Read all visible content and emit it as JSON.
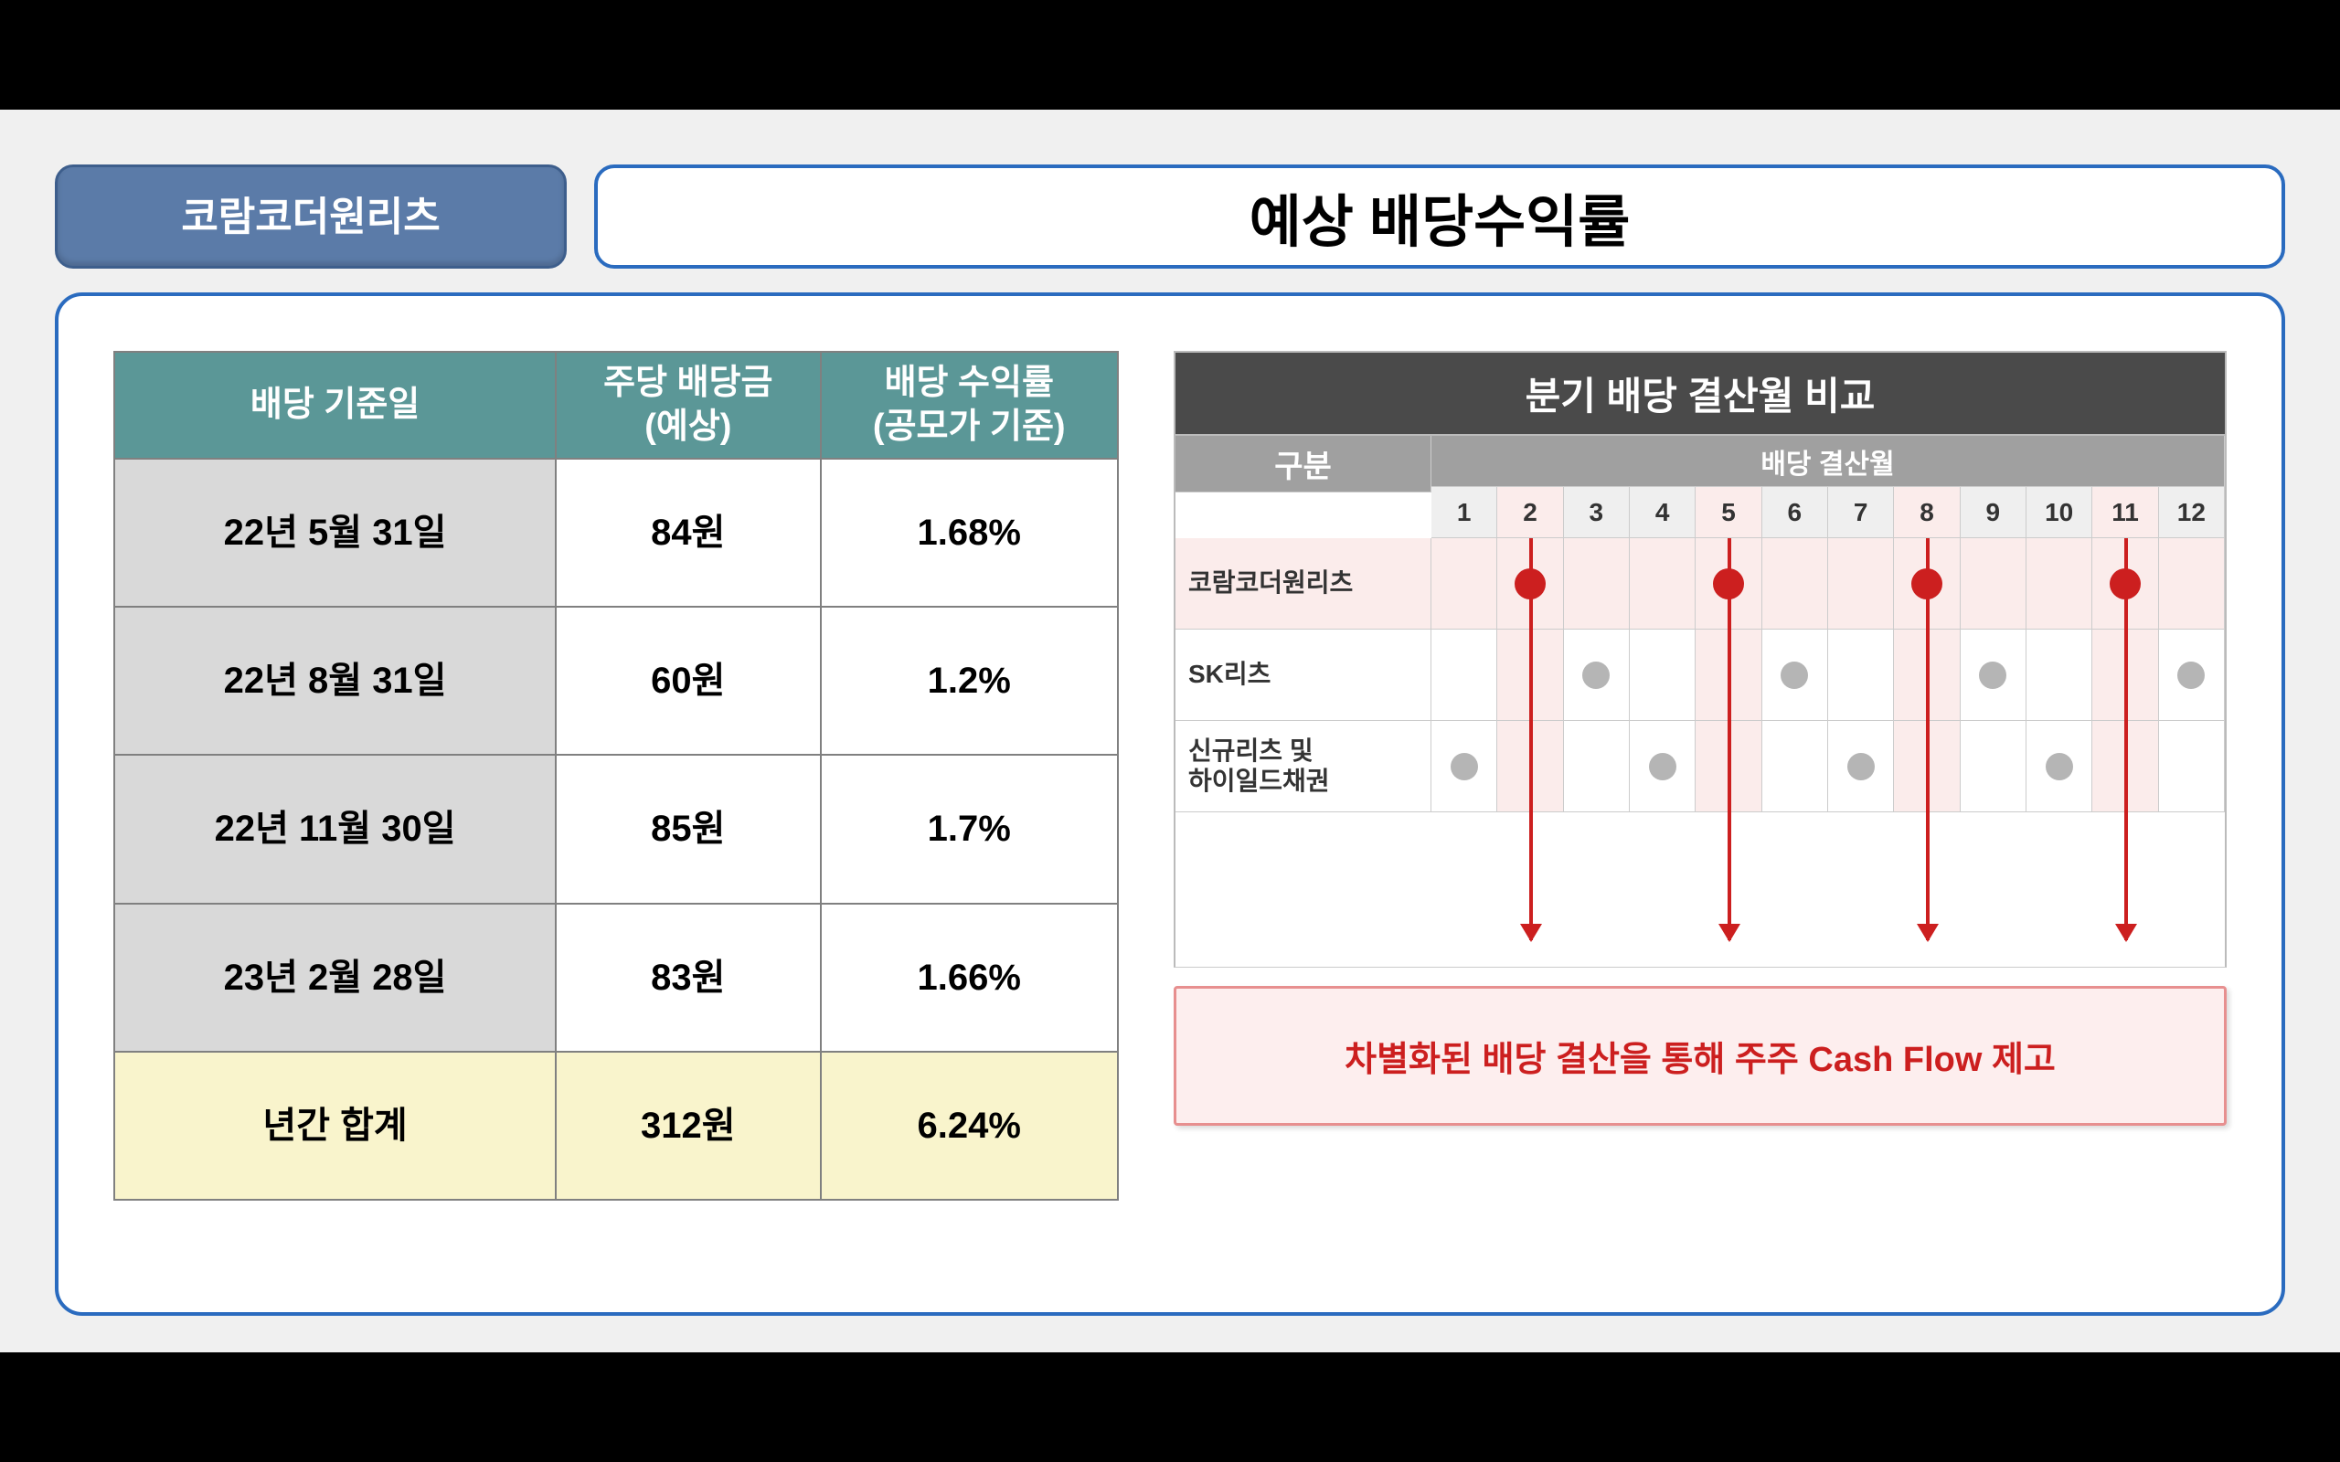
{
  "header": {
    "chip": "코람코더원리츠",
    "title": "예상 배당수익률"
  },
  "table": {
    "columns": [
      "배당 기준일",
      "주당 배당금\n(예상)",
      "배당 수익률\n(공모가 기준)"
    ],
    "rows": [
      {
        "date": "22년 5월 31일",
        "dps": "84원",
        "yld": "1.68%"
      },
      {
        "date": "22년 8월 31일",
        "dps": "60원",
        "yld": "1.2%"
      },
      {
        "date": "22년 11월 30일",
        "dps": "85원",
        "yld": "1.7%"
      },
      {
        "date": "23년 2월 28일",
        "dps": "83원",
        "yld": "1.66%"
      }
    ],
    "sum_label": "년간 합계",
    "sum_dps": "312원",
    "sum_yld": "6.24%"
  },
  "chart": {
    "title": "분기 배당 결산월 비교",
    "corner": "구분",
    "main_head": "배당 결산월",
    "months": [
      "1",
      "2",
      "3",
      "4",
      "5",
      "6",
      "7",
      "8",
      "9",
      "10",
      "11",
      "12"
    ],
    "highlight_months": [
      2,
      5,
      8,
      11
    ],
    "rows": [
      {
        "label": "코람코더원리츠",
        "months": [
          2,
          5,
          8,
          11
        ],
        "style": "red",
        "highlight": true
      },
      {
        "label": "SK리츠",
        "months": [
          3,
          6,
          9,
          12
        ],
        "style": "gray",
        "highlight": false
      },
      {
        "label": "신규리츠 및\n하이일드채권",
        "months": [
          1,
          4,
          7,
          10
        ],
        "style": "gray",
        "highlight": false
      }
    ],
    "callout": "차별화된 배당 결산을 통해 주주 Cash Flow 제고"
  },
  "style": {
    "header_chip_bg": "#5b7ba8",
    "border_blue": "#2a6bbf",
    "table_header_bg": "#5b9797",
    "table_alt_bg": "#d9d9d9",
    "table_sum_bg": "#f9f4cc",
    "chart_title_bg": "#4a4a4a",
    "chart_head_bg": "#a0a0a0",
    "dot_red": "#cc1f1f",
    "dot_gray": "#b5b5b5",
    "hl_bg": "#fbeceb",
    "callout_border": "#e78f8f",
    "callout_bg": "#fdeeee"
  }
}
